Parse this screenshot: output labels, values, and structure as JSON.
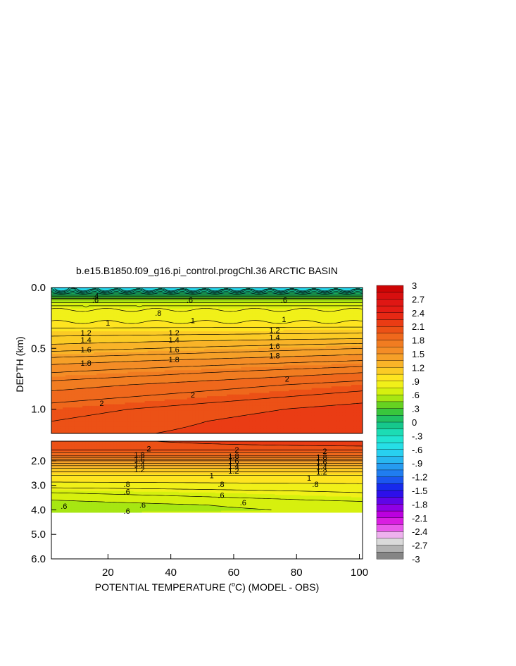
{
  "chart_data": {
    "type": "heatmap",
    "title": "b.e15.B1850.f09_g16.pi_control.progChl.36 ARCTIC BASIN",
    "xlabel": "POTENTIAL TEMPERATURE (",
    "xlabel_unit": "o",
    "xlabel_suffix": "C) (MODEL - OBS)",
    "ylabel": "DEPTH (km)",
    "xlim": [
      2,
      101
    ],
    "x_ticks": [
      20,
      40,
      60,
      80,
      100
    ],
    "upper_panel": {
      "ylim": [
        0,
        1.2
      ],
      "y_ticks": [
        0.0,
        0.5,
        1.0
      ],
      "y_tick_labels": [
        "0.0",
        "0.5",
        "1.0"
      ]
    },
    "lower_panel": {
      "ylim": [
        1.2,
        6.0
      ],
      "y_ticks": [
        2.0,
        3.0,
        4.0,
        5.0,
        6.0
      ],
      "y_tick_labels": [
        "2.0",
        "3.0",
        "4.0",
        "5.0",
        "6.0"
      ],
      "data_bottom_depth": 4.1
    },
    "colorbar": {
      "min": -3,
      "max": 3,
      "step": 0.15,
      "tick_labels": [
        "3",
        "2.7",
        "2.4",
        "2.1",
        "1.8",
        "1.5",
        "1.2",
        ".9",
        ".6",
        ".3",
        "0",
        "-.3",
        "-.6",
        "-.9",
        "-1.2",
        "-1.5",
        "-1.8",
        "-2.1",
        "-2.4",
        "-2.7",
        "-3"
      ]
    },
    "profile": {
      "depth_km": [
        0.0,
        0.05,
        0.1,
        0.15,
        0.2,
        0.25,
        0.3,
        0.4,
        0.5,
        0.6,
        0.7,
        0.8,
        0.9,
        1.0,
        1.1,
        1.2,
        1.5,
        1.8,
        2.0,
        2.3,
        2.6,
        3.0,
        3.3,
        3.6,
        3.8,
        4.0,
        4.1
      ],
      "anomaly_at_x2": [
        -0.6,
        0.0,
        0.5,
        0.7,
        0.85,
        0.8,
        0.95,
        1.1,
        1.25,
        1.45,
        1.6,
        1.75,
        1.85,
        1.95,
        2.0,
        2.05,
        2.05,
        1.8,
        1.5,
        1.2,
        1.0,
        0.85,
        0.7,
        0.6,
        0.55,
        0.55,
        0.6
      ],
      "anomaly_at_x101": [
        -0.6,
        0.0,
        0.5,
        0.7,
        0.85,
        0.8,
        0.95,
        1.15,
        1.4,
        1.6,
        1.8,
        1.95,
        2.05,
        2.15,
        2.2,
        2.2,
        2.05,
        1.8,
        1.5,
        1.2,
        1.0,
        0.88,
        0.8,
        0.72,
        0.65,
        0.62,
        0.62
      ]
    },
    "contour_labels": {
      "upper": [
        {
          "text": ".8",
          "x": 36,
          "y": 0.21
        },
        {
          "text": "1",
          "x": 20,
          "y": 0.29
        },
        {
          "text": "1",
          "x": 47,
          "y": 0.27
        },
        {
          "text": "1",
          "x": 76,
          "y": 0.26
        },
        {
          "text": "1.2",
          "x": 13,
          "y": 0.37
        },
        {
          "text": "1.2",
          "x": 41,
          "y": 0.37
        },
        {
          "text": "1.2",
          "x": 73,
          "y": 0.35
        },
        {
          "text": "1.4",
          "x": 13,
          "y": 0.43
        },
        {
          "text": "1.4",
          "x": 41,
          "y": 0.43
        },
        {
          "text": "1.4",
          "x": 73,
          "y": 0.41
        },
        {
          "text": "1.6",
          "x": 13,
          "y": 0.51
        },
        {
          "text": "1.6",
          "x": 41,
          "y": 0.51
        },
        {
          "text": "1.6",
          "x": 73,
          "y": 0.48
        },
        {
          "text": "1.8",
          "x": 13,
          "y": 0.62
        },
        {
          "text": "1.8",
          "x": 41,
          "y": 0.59
        },
        {
          "text": "1.8",
          "x": 73,
          "y": 0.56
        },
        {
          "text": "2",
          "x": 18,
          "y": 0.95
        },
        {
          "text": "2",
          "x": 47,
          "y": 0.88
        },
        {
          "text": "2",
          "x": 77,
          "y": 0.75
        },
        {
          "text": ".6",
          "x": 16,
          "y": 0.1
        },
        {
          "text": ".4",
          "x": 16,
          "y": 0.07
        },
        {
          "text": ".6",
          "x": 46,
          "y": 0.1
        },
        {
          "text": ".6",
          "x": 76,
          "y": 0.1
        }
      ],
      "lower": [
        {
          "text": "2",
          "x": 33,
          "y": 1.5
        },
        {
          "text": "2",
          "x": 61,
          "y": 1.55
        },
        {
          "text": "2",
          "x": 89,
          "y": 1.6
        },
        {
          "text": "1.8",
          "x": 30,
          "y": 1.75
        },
        {
          "text": "1.6",
          "x": 30,
          "y": 1.95
        },
        {
          "text": "1.4",
          "x": 30,
          "y": 2.15
        },
        {
          "text": "1.2",
          "x": 30,
          "y": 2.35
        },
        {
          "text": "1.8",
          "x": 60,
          "y": 1.8
        },
        {
          "text": "1.6",
          "x": 60,
          "y": 2.0
        },
        {
          "text": "1.4",
          "x": 60,
          "y": 2.2
        },
        {
          "text": "1.2",
          "x": 60,
          "y": 2.4
        },
        {
          "text": "1.8",
          "x": 88,
          "y": 1.85
        },
        {
          "text": "1.6",
          "x": 88,
          "y": 2.05
        },
        {
          "text": "1.4",
          "x": 88,
          "y": 2.25
        },
        {
          "text": "1.2",
          "x": 88,
          "y": 2.45
        },
        {
          "text": "1",
          "x": 53,
          "y": 2.6
        },
        {
          "text": "1",
          "x": 84,
          "y": 2.7
        },
        {
          "text": ".8",
          "x": 26,
          "y": 2.95
        },
        {
          "text": ".8",
          "x": 56,
          "y": 2.95
        },
        {
          "text": ".8",
          "x": 86,
          "y": 2.95
        },
        {
          "text": ".6",
          "x": 26,
          "y": 3.25
        },
        {
          "text": ".6",
          "x": 56,
          "y": 3.4
        },
        {
          "text": ".6",
          "x": 31,
          "y": 3.8
        },
        {
          "text": ".6",
          "x": 63,
          "y": 3.7
        },
        {
          "text": ".6",
          "x": 6,
          "y": 3.85
        },
        {
          "text": ".6",
          "x": 26,
          "y": 4.05
        }
      ]
    }
  }
}
